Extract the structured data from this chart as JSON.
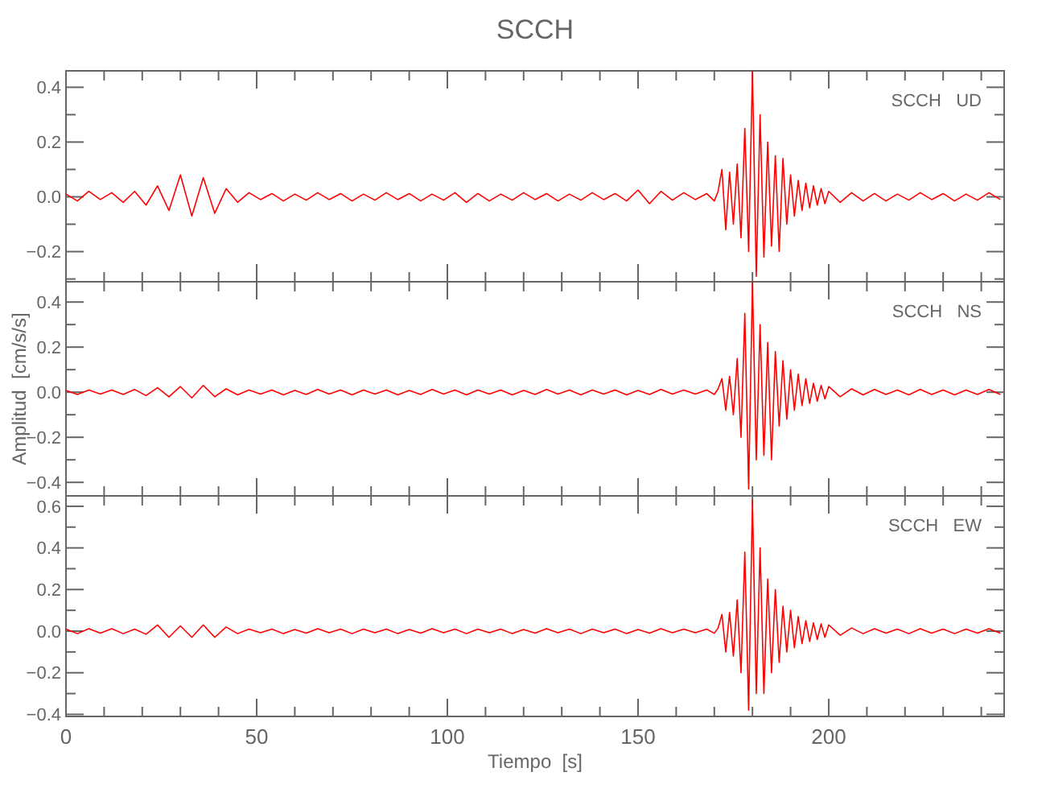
{
  "chart_data": [
    {
      "type": "line",
      "title": "SCCH",
      "annotations": [
        "SCCH   UD"
      ],
      "tick_labels": "y",
      "x": [
        0,
        3,
        6,
        9,
        12,
        15,
        18,
        21,
        24,
        27,
        30,
        33,
        36,
        39,
        42,
        45,
        48,
        51,
        54,
        57,
        60,
        63,
        66,
        69,
        72,
        75,
        78,
        81,
        84,
        87,
        90,
        93,
        96,
        99,
        102,
        105,
        108,
        111,
        114,
        117,
        120,
        123,
        126,
        129,
        132,
        135,
        138,
        141,
        144,
        147,
        150,
        153,
        156,
        159,
        162,
        165,
        168,
        170,
        171,
        172,
        173,
        174,
        175,
        176,
        177,
        178,
        179,
        180,
        181,
        182,
        183,
        184,
        185,
        186,
        187,
        188,
        189,
        190,
        191,
        192,
        193,
        194,
        195,
        196,
        197,
        198,
        199,
        200,
        203,
        206,
        209,
        212,
        215,
        218,
        221,
        224,
        227,
        230,
        233,
        236,
        239,
        242,
        245
      ],
      "series": [
        {
          "color": "#ff0000",
          "values": [
            0.01,
            -0.015,
            0.02,
            -0.01,
            0.015,
            -0.02,
            0.02,
            -0.03,
            0.04,
            -0.05,
            0.08,
            -0.07,
            0.07,
            -0.06,
            0.03,
            -0.02,
            0.015,
            -0.01,
            0.012,
            -0.015,
            0.01,
            -0.012,
            0.015,
            -0.01,
            0.012,
            -0.015,
            0.01,
            -0.012,
            0.015,
            -0.01,
            0.012,
            -0.015,
            0.01,
            -0.012,
            0.015,
            -0.02,
            0.012,
            -0.015,
            0.01,
            -0.012,
            0.015,
            -0.01,
            0.012,
            -0.015,
            0.01,
            -0.012,
            0.015,
            -0.01,
            0.012,
            -0.015,
            0.025,
            -0.025,
            0.02,
            -0.012,
            0.015,
            -0.01,
            0.012,
            -0.015,
            0.02,
            0.1,
            -0.12,
            0.09,
            -0.1,
            0.12,
            -0.15,
            0.25,
            -0.2,
            0.46,
            -0.29,
            0.3,
            -0.22,
            0.2,
            -0.18,
            0.15,
            -0.2,
            0.14,
            -0.1,
            0.08,
            -0.07,
            0.06,
            -0.05,
            0.05,
            -0.04,
            0.04,
            -0.03,
            0.03,
            -0.025,
            0.02,
            -0.02,
            0.015,
            -0.015,
            0.012,
            -0.015,
            0.01,
            -0.012,
            0.015,
            -0.01,
            0.012,
            -0.015,
            0.01,
            -0.012,
            0.015,
            -0.01
          ]
        }
      ],
      "xlim": [
        0,
        246
      ],
      "ylim": [
        -0.31,
        0.46
      ],
      "xticks": [
        0,
        {
          "value": 10,
          "label": null
        },
        {
          "value": 20,
          "label": null
        },
        {
          "value": 30,
          "label": null
        },
        {
          "value": 40,
          "label": null
        },
        50,
        {
          "value": 60,
          "label": null
        },
        {
          "value": 70,
          "label": null
        },
        {
          "value": 80,
          "label": null
        },
        {
          "value": 90,
          "label": null
        },
        100,
        {
          "value": 110,
          "label": null
        },
        {
          "value": 120,
          "label": null
        },
        {
          "value": 130,
          "label": null
        },
        {
          "value": 140,
          "label": null
        },
        150,
        {
          "value": 160,
          "label": null
        },
        {
          "value": 170,
          "label": null
        },
        {
          "value": 180,
          "label": null
        },
        {
          "value": 190,
          "label": null
        },
        200,
        {
          "value": 210,
          "label": null
        },
        {
          "value": 220,
          "label": null
        },
        {
          "value": 230,
          "label": null
        },
        {
          "value": 240,
          "label": null
        }
      ],
      "yticks": [
        {
          "value": -0.3,
          "label": null
        },
        {
          "value": -0.2,
          "label": "−0.2"
        },
        {
          "value": -0.1,
          "label": null
        },
        {
          "value": 0,
          "label": "0.0"
        },
        {
          "value": 0.1,
          "label": null
        },
        {
          "value": 0.2,
          "label": "0.2"
        },
        {
          "value": 0.3,
          "label": null
        },
        {
          "value": 0.4,
          "label": "0.4"
        }
      ]
    },
    {
      "type": "line",
      "ylabel": "Amplitud  [cm/s/s]",
      "annotations": [
        "SCCH   NS"
      ],
      "tick_labels": "y",
      "x": [
        0,
        3,
        6,
        9,
        12,
        15,
        18,
        21,
        24,
        27,
        30,
        33,
        36,
        39,
        42,
        45,
        48,
        51,
        54,
        57,
        60,
        63,
        66,
        69,
        72,
        75,
        78,
        81,
        84,
        87,
        90,
        93,
        96,
        99,
        102,
        105,
        108,
        111,
        114,
        117,
        120,
        123,
        126,
        129,
        132,
        135,
        138,
        141,
        144,
        147,
        150,
        153,
        156,
        159,
        162,
        165,
        168,
        170,
        171,
        172,
        173,
        174,
        175,
        176,
        177,
        178,
        179,
        180,
        181,
        182,
        183,
        184,
        185,
        186,
        187,
        188,
        189,
        190,
        191,
        192,
        193,
        194,
        195,
        196,
        197,
        198,
        199,
        200,
        203,
        206,
        209,
        212,
        215,
        218,
        221,
        224,
        227,
        230,
        233,
        236,
        239,
        242,
        245
      ],
      "series": [
        {
          "color": "#ff0000",
          "values": [
            0.008,
            -0.01,
            0.01,
            -0.008,
            0.01,
            -0.01,
            0.012,
            -0.015,
            0.02,
            -0.02,
            0.025,
            -0.025,
            0.03,
            -0.02,
            0.015,
            -0.012,
            0.01,
            -0.008,
            0.01,
            -0.012,
            0.008,
            -0.01,
            0.012,
            -0.008,
            0.01,
            -0.012,
            0.01,
            -0.008,
            0.01,
            -0.012,
            0.008,
            -0.01,
            0.012,
            -0.008,
            0.01,
            -0.012,
            0.01,
            -0.008,
            0.01,
            -0.012,
            0.008,
            -0.01,
            0.012,
            -0.008,
            0.01,
            -0.012,
            0.01,
            -0.008,
            0.01,
            -0.012,
            0.008,
            -0.01,
            0.012,
            -0.008,
            0.01,
            -0.008,
            0.01,
            -0.01,
            0.015,
            0.06,
            -0.08,
            0.07,
            -0.1,
            0.15,
            -0.2,
            0.35,
            -0.43,
            0.49,
            -0.3,
            0.3,
            -0.28,
            0.22,
            -0.3,
            0.18,
            -0.15,
            0.14,
            -0.12,
            0.1,
            -0.08,
            0.08,
            -0.06,
            0.06,
            -0.05,
            0.04,
            -0.04,
            0.03,
            -0.03,
            0.025,
            -0.02,
            0.015,
            -0.012,
            0.012,
            -0.01,
            0.01,
            -0.012,
            0.012,
            -0.01,
            0.01,
            -0.012,
            0.01,
            -0.01,
            0.012,
            -0.01
          ]
        }
      ],
      "xlim": [
        0,
        246
      ],
      "ylim": [
        -0.46,
        0.49
      ],
      "xticks": [
        0,
        {
          "value": 10,
          "label": null
        },
        {
          "value": 20,
          "label": null
        },
        {
          "value": 30,
          "label": null
        },
        {
          "value": 40,
          "label": null
        },
        50,
        {
          "value": 60,
          "label": null
        },
        {
          "value": 70,
          "label": null
        },
        {
          "value": 80,
          "label": null
        },
        {
          "value": 90,
          "label": null
        },
        100,
        {
          "value": 110,
          "label": null
        },
        {
          "value": 120,
          "label": null
        },
        {
          "value": 130,
          "label": null
        },
        {
          "value": 140,
          "label": null
        },
        150,
        {
          "value": 160,
          "label": null
        },
        {
          "value": 170,
          "label": null
        },
        {
          "value": 180,
          "label": null
        },
        {
          "value": 190,
          "label": null
        },
        200,
        {
          "value": 210,
          "label": null
        },
        {
          "value": 220,
          "label": null
        },
        {
          "value": 230,
          "label": null
        },
        {
          "value": 240,
          "label": null
        }
      ],
      "yticks": [
        {
          "value": -0.4,
          "label": "−0.4"
        },
        {
          "value": -0.3,
          "label": null
        },
        {
          "value": -0.2,
          "label": "−0.2"
        },
        {
          "value": -0.1,
          "label": null
        },
        {
          "value": 0,
          "label": "0.0"
        },
        {
          "value": 0.1,
          "label": null
        },
        {
          "value": 0.2,
          "label": "0.2"
        },
        {
          "value": 0.3,
          "label": null
        },
        {
          "value": 0.4,
          "label": "0.4"
        }
      ]
    },
    {
      "type": "line",
      "xlabel": "Tiempo  [s]",
      "annotations": [
        "SCCH   EW"
      ],
      "x": [
        0,
        3,
        6,
        9,
        12,
        15,
        18,
        21,
        24,
        27,
        30,
        33,
        36,
        39,
        42,
        45,
        48,
        51,
        54,
        57,
        60,
        63,
        66,
        69,
        72,
        75,
        78,
        81,
        84,
        87,
        90,
        93,
        96,
        99,
        102,
        105,
        108,
        111,
        114,
        117,
        120,
        123,
        126,
        129,
        132,
        135,
        138,
        141,
        144,
        147,
        150,
        153,
        156,
        159,
        162,
        165,
        168,
        170,
        171,
        172,
        173,
        174,
        175,
        176,
        177,
        178,
        179,
        180,
        181,
        182,
        183,
        184,
        185,
        186,
        187,
        188,
        189,
        190,
        191,
        192,
        193,
        194,
        195,
        196,
        197,
        198,
        199,
        200,
        203,
        206,
        209,
        212,
        215,
        218,
        221,
        224,
        227,
        230,
        233,
        236,
        239,
        242,
        245
      ],
      "series": [
        {
          "color": "#ff0000",
          "values": [
            0.01,
            -0.012,
            0.012,
            -0.01,
            0.012,
            -0.012,
            0.01,
            -0.015,
            0.03,
            -0.03,
            0.025,
            -0.03,
            0.03,
            -0.03,
            0.02,
            -0.012,
            0.01,
            -0.008,
            0.01,
            -0.012,
            0.008,
            -0.01,
            0.012,
            -0.008,
            0.01,
            -0.012,
            0.01,
            -0.008,
            0.01,
            -0.012,
            0.008,
            -0.01,
            0.012,
            -0.008,
            0.01,
            -0.012,
            0.01,
            -0.008,
            0.01,
            -0.012,
            0.008,
            -0.01,
            0.012,
            -0.008,
            0.01,
            -0.012,
            0.01,
            -0.008,
            0.01,
            -0.012,
            0.008,
            -0.01,
            0.012,
            -0.008,
            0.01,
            -0.008,
            0.01,
            -0.01,
            0.015,
            0.08,
            -0.1,
            0.09,
            -0.12,
            0.15,
            -0.2,
            0.38,
            -0.38,
            0.63,
            -0.3,
            0.4,
            -0.3,
            0.25,
            -0.2,
            0.2,
            -0.15,
            0.12,
            -0.1,
            0.1,
            -0.08,
            0.07,
            -0.06,
            0.05,
            -0.05,
            0.04,
            -0.04,
            0.035,
            -0.03,
            0.03,
            -0.02,
            0.015,
            -0.012,
            0.012,
            -0.01,
            0.01,
            -0.012,
            0.012,
            -0.01,
            0.01,
            -0.012,
            0.01,
            -0.01,
            0.012,
            -0.01
          ]
        }
      ],
      "xlim": [
        0,
        246
      ],
      "ylim": [
        -0.41,
        0.65
      ],
      "xticks": [
        0,
        {
          "value": 10,
          "label": null
        },
        {
          "value": 20,
          "label": null
        },
        {
          "value": 30,
          "label": null
        },
        {
          "value": 40,
          "label": null
        },
        50,
        {
          "value": 60,
          "label": null
        },
        {
          "value": 70,
          "label": null
        },
        {
          "value": 80,
          "label": null
        },
        {
          "value": 90,
          "label": null
        },
        100,
        {
          "value": 110,
          "label": null
        },
        {
          "value": 120,
          "label": null
        },
        {
          "value": 130,
          "label": null
        },
        {
          "value": 140,
          "label": null
        },
        150,
        {
          "value": 160,
          "label": null
        },
        {
          "value": 170,
          "label": null
        },
        {
          "value": 180,
          "label": null
        },
        {
          "value": 190,
          "label": null
        },
        200,
        {
          "value": 210,
          "label": null
        },
        {
          "value": 220,
          "label": null
        },
        {
          "value": 230,
          "label": null
        },
        {
          "value": 240,
          "label": null
        }
      ],
      "yticks": [
        {
          "value": -0.4,
          "label": "−0.4"
        },
        {
          "value": -0.3,
          "label": null
        },
        {
          "value": -0.2,
          "label": "−0.2"
        },
        {
          "value": -0.1,
          "label": null
        },
        {
          "value": 0,
          "label": "0.0"
        },
        {
          "value": 0.1,
          "label": null
        },
        {
          "value": 0.2,
          "label": "0.2"
        },
        {
          "value": 0.3,
          "label": null
        },
        {
          "value": 0.4,
          "label": "0.4"
        },
        {
          "value": 0.5,
          "label": null
        },
        {
          "value": 0.6,
          "label": "0.6"
        }
      ]
    }
  ]
}
